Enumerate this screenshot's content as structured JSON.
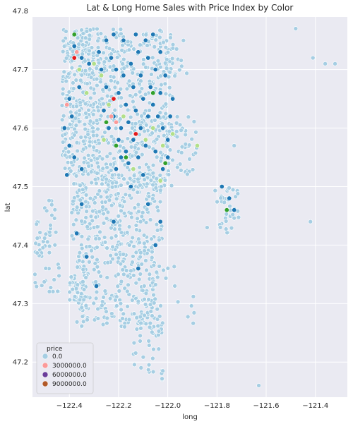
{
  "chart_data": {
    "type": "scatter",
    "title": "Lat & Long Home Sales with Price Index by Color",
    "xlabel": "long",
    "ylabel": "lat",
    "xlim": [
      -122.55,
      -121.27
    ],
    "ylim": [
      47.14,
      47.79
    ],
    "x_ticks": [
      -122.4,
      -122.2,
      -122.0,
      -121.8,
      -121.6,
      -121.4
    ],
    "x_tick_labels": [
      "−122.4",
      "−122.2",
      "−122.0",
      "−121.8",
      "−121.6",
      "−121.4"
    ],
    "y_ticks": [
      47.2,
      47.3,
      47.4,
      47.5,
      47.6,
      47.7,
      47.8
    ],
    "y_tick_labels": [
      "47.2",
      "47.3",
      "47.4",
      "47.5",
      "47.6",
      "47.7",
      "47.8"
    ],
    "grid": true,
    "legend": {
      "title": "price",
      "placement": "bottom-left",
      "entries": [
        {
          "label": "0.0",
          "color": "#a6cee3"
        },
        {
          "label": "3000000.0",
          "color": "#fb9a99"
        },
        {
          "label": "6000000.0",
          "color": "#6a3d9a"
        },
        {
          "label": "9000000.0",
          "color": "#b15928"
        }
      ]
    },
    "palette": {
      "light_blue": "#a6cee3",
      "dark_blue": "#1f78b4",
      "light_green": "#b2df8a",
      "green": "#33a02c",
      "pink": "#fb9a99",
      "red": "#e31a1c"
    },
    "series": [
      {
        "color": "#1f78b4",
        "points": [
          [
            -122.23,
            47.72
          ],
          [
            -122.21,
            47.7
          ],
          [
            -122.18,
            47.69
          ],
          [
            -122.15,
            47.71
          ],
          [
            -122.12,
            47.73
          ],
          [
            -122.2,
            47.66
          ],
          [
            -122.17,
            47.64
          ],
          [
            -122.14,
            47.67
          ],
          [
            -122.11,
            47.69
          ],
          [
            -122.08,
            47.72
          ],
          [
            -122.22,
            47.62
          ],
          [
            -122.19,
            47.6
          ],
          [
            -122.16,
            47.61
          ],
          [
            -122.13,
            47.63
          ],
          [
            -122.1,
            47.65
          ],
          [
            -122.07,
            47.67
          ],
          [
            -122.05,
            47.7
          ],
          [
            -122.03,
            47.73
          ],
          [
            -122.2,
            47.58
          ],
          [
            -122.17,
            47.56
          ],
          [
            -122.14,
            47.58
          ],
          [
            -122.11,
            47.6
          ],
          [
            -122.08,
            47.62
          ],
          [
            -122.06,
            47.64
          ],
          [
            -122.04,
            47.62
          ],
          [
            -122.02,
            47.6
          ],
          [
            -122.0,
            47.58
          ],
          [
            -122.05,
            47.56
          ],
          [
            -122.09,
            47.57
          ],
          [
            -122.12,
            47.55
          ],
          [
            -122.16,
            47.54
          ],
          [
            -122.19,
            47.55
          ],
          [
            -122.24,
            47.6
          ],
          [
            -122.26,
            47.63
          ],
          [
            -122.25,
            47.67
          ],
          [
            -122.27,
            47.7
          ],
          [
            -122.28,
            47.73
          ],
          [
            -122.25,
            47.75
          ],
          [
            -122.22,
            47.76
          ],
          [
            -122.18,
            47.75
          ],
          [
            -122.13,
            47.76
          ],
          [
            -122.09,
            47.75
          ],
          [
            -122.06,
            47.76
          ],
          [
            -122.03,
            47.66
          ],
          [
            -122.01,
            47.69
          ],
          [
            -121.99,
            47.62
          ],
          [
            -121.98,
            47.65
          ],
          [
            -122.0,
            47.55
          ],
          [
            -122.02,
            47.53
          ],
          [
            -122.1,
            47.52
          ],
          [
            -122.32,
            47.71
          ],
          [
            -122.35,
            47.72
          ],
          [
            -122.38,
            47.74
          ],
          [
            -122.36,
            47.67
          ],
          [
            -122.4,
            47.65
          ],
          [
            -122.39,
            47.62
          ],
          [
            -122.42,
            47.6
          ],
          [
            -122.4,
            47.57
          ],
          [
            -122.38,
            47.55
          ],
          [
            -122.35,
            47.53
          ],
          [
            -121.75,
            47.48
          ],
          [
            -121.73,
            47.46
          ],
          [
            -121.78,
            47.5
          ],
          [
            -122.37,
            47.42
          ],
          [
            -122.33,
            47.38
          ],
          [
            -122.29,
            47.33
          ],
          [
            -122.12,
            47.36
          ],
          [
            -122.05,
            47.4
          ],
          [
            -122.03,
            47.44
          ],
          [
            -122.08,
            47.47
          ],
          [
            -122.22,
            47.44
          ],
          [
            -122.35,
            47.47
          ],
          [
            -122.41,
            47.52
          ],
          [
            -122.15,
            47.5
          ],
          [
            -122.21,
            47.53
          ]
        ]
      },
      {
        "color": "#b2df8a",
        "points": [
          [
            -122.3,
            47.71
          ],
          [
            -122.27,
            47.69
          ],
          [
            -122.24,
            47.64
          ],
          [
            -122.21,
            47.57
          ],
          [
            -122.18,
            47.62
          ],
          [
            -122.09,
            47.58
          ],
          [
            -122.06,
            47.6
          ],
          [
            -122.02,
            47.57
          ],
          [
            -121.98,
            47.59
          ],
          [
            -122.36,
            47.7
          ],
          [
            -122.33,
            47.66
          ],
          [
            -122.14,
            47.53
          ],
          [
            -121.88,
            47.57
          ],
          [
            -122.03,
            47.51
          ],
          [
            -122.26,
            47.58
          ]
        ]
      },
      {
        "color": "#33a02c",
        "points": [
          [
            -122.38,
            47.76
          ],
          [
            -122.21,
            47.57
          ],
          [
            -122.17,
            47.55
          ],
          [
            -122.01,
            47.54
          ],
          [
            -122.25,
            47.61
          ],
          [
            -122.06,
            47.66
          ],
          [
            -121.76,
            47.46
          ]
        ]
      },
      {
        "color": "#fb9a99",
        "points": [
          [
            -122.41,
            47.64
          ],
          [
            -122.23,
            47.62
          ],
          [
            -122.21,
            47.61
          ],
          [
            -122.37,
            47.73
          ]
        ]
      },
      {
        "color": "#e31a1c",
        "points": [
          [
            -122.22,
            47.65
          ],
          [
            -122.13,
            47.59
          ],
          [
            -122.38,
            47.72
          ]
        ]
      }
    ]
  }
}
